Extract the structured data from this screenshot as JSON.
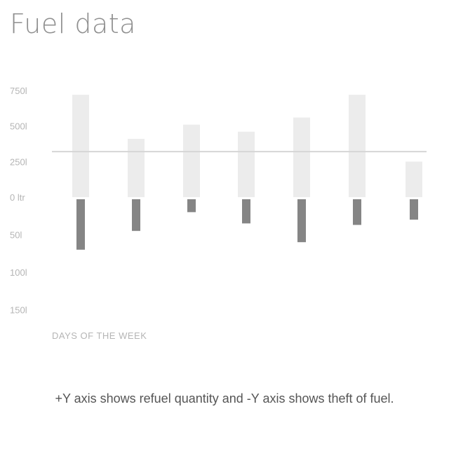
{
  "chart_data": {
    "type": "bar",
    "title": "Fuel data",
    "xlabel": "DAYS OF THE WEEK",
    "ylabel": "",
    "categories": [
      "",
      "",
      "",
      "",
      "",
      "",
      ""
    ],
    "series": [
      {
        "values": [
          720,
          410,
          510,
          460,
          560,
          720,
          250
        ]
      },
      {
        "values": [
          -70,
          -45,
          -20,
          -35,
          -60,
          -37,
          -30
        ]
      }
    ],
    "yticks": [
      {
        "value": 750,
        "label": "750l"
      },
      {
        "value": 500,
        "label": "500l"
      },
      {
        "value": 250,
        "label": "250l"
      },
      {
        "value": 0,
        "label": "0 ltr"
      },
      {
        "value": -50,
        "label": "50l"
      },
      {
        "value": -100,
        "label": "100l"
      },
      {
        "value": -150,
        "label": "150l"
      }
    ],
    "reference_line": 320,
    "colors": {
      "positive": "#ececec",
      "negative": "#858585",
      "refline": "#d6d6d6",
      "tick": "#b5b5b5"
    },
    "grid": false,
    "legend": "none",
    "note": "+Y axis shows refuel quantity and -Y axis shows theft of fuel."
  }
}
